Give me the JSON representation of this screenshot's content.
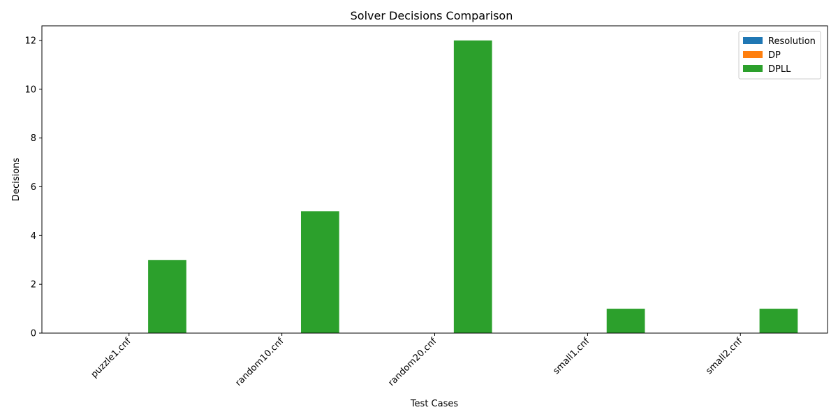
{
  "chart_data": {
    "type": "bar",
    "title": "Solver Decisions Comparison",
    "xlabel": "Test Cases",
    "ylabel": "Decisions",
    "categories": [
      "puzzle1.cnf",
      "random10.cnf",
      "random20.cnf",
      "small1.cnf",
      "small2.cnf"
    ],
    "series": [
      {
        "name": "Resolution",
        "color": "#1f77b4",
        "values": [
          0,
          0,
          0,
          0,
          0
        ]
      },
      {
        "name": "DP",
        "color": "#ff7f0e",
        "values": [
          0,
          0,
          0,
          0,
          0
        ]
      },
      {
        "name": "DPLL",
        "color": "#2ca02c",
        "values": [
          3,
          5,
          12,
          1,
          1
        ]
      }
    ],
    "ylim": [
      0,
      12.6
    ],
    "yticks": [
      0,
      2,
      4,
      6,
      8,
      10,
      12
    ],
    "grid": false,
    "legend_position": "top-right"
  }
}
